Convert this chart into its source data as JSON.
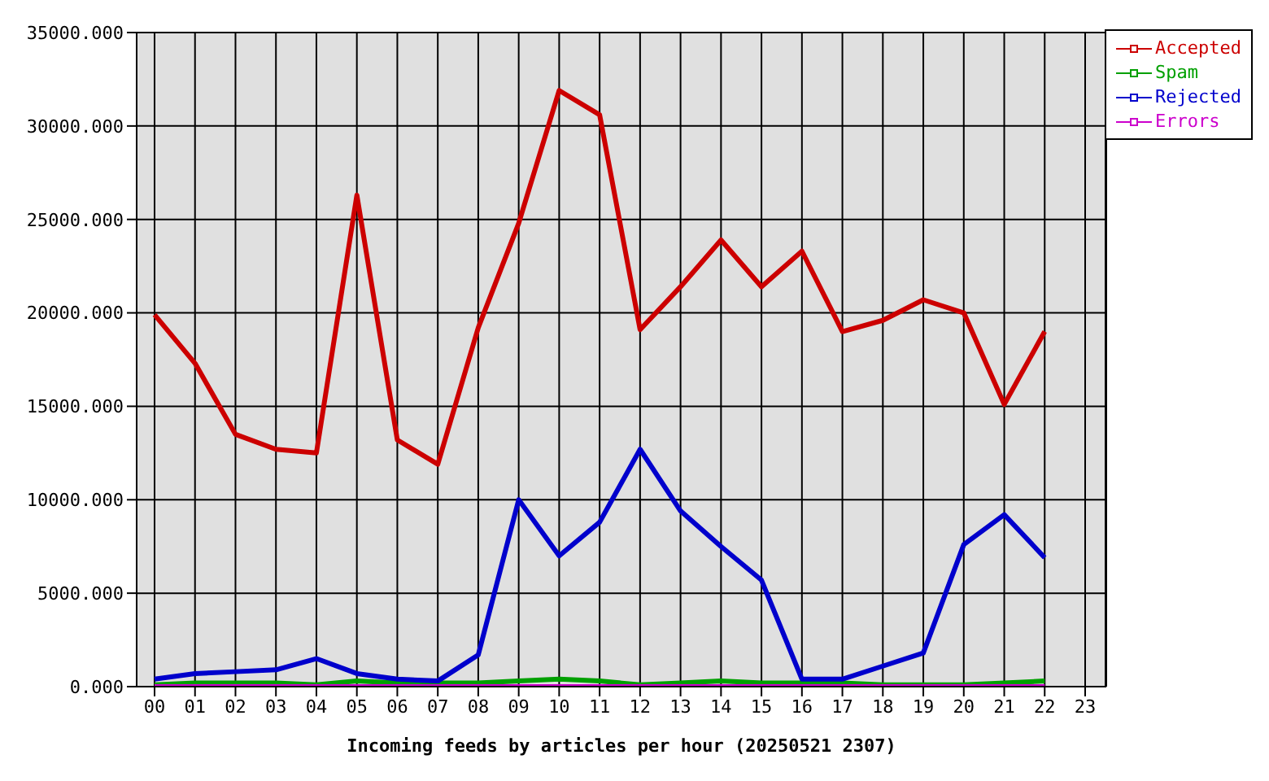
{
  "chart_data": {
    "type": "line",
    "xlabel": "Incoming feeds by articles per hour (20250521 2307)",
    "categories": [
      "00",
      "01",
      "02",
      "03",
      "04",
      "05",
      "06",
      "07",
      "08",
      "09",
      "10",
      "11",
      "12",
      "13",
      "14",
      "15",
      "16",
      "17",
      "18",
      "19",
      "20",
      "21",
      "22",
      "23"
    ],
    "series": [
      {
        "name": "Accepted",
        "color": "#cc0000",
        "values": [
          19900,
          17300,
          13500,
          12700,
          12500,
          26300,
          13200,
          11900,
          19200,
          24800,
          31900,
          30600,
          19100,
          21400,
          23900,
          21400,
          23300,
          19000,
          19600,
          20700,
          20000,
          15100,
          19000,
          null
        ]
      },
      {
        "name": "Spam",
        "color": "#00a000",
        "values": [
          100,
          200,
          200,
          200,
          100,
          300,
          200,
          200,
          200,
          300,
          400,
          300,
          100,
          200,
          300,
          200,
          200,
          200,
          100,
          100,
          100,
          200,
          300,
          null
        ]
      },
      {
        "name": "Rejected",
        "color": "#0000cc",
        "values": [
          400,
          700,
          800,
          900,
          1500,
          700,
          400,
          300,
          1700,
          10000,
          7000,
          8800,
          12700,
          9400,
          7500,
          5700,
          400,
          400,
          1100,
          1800,
          7600,
          9200,
          6900,
          null
        ]
      },
      {
        "name": "Errors",
        "color": "#cc00cc",
        "values": [
          0,
          0,
          0,
          0,
          0,
          0,
          0,
          0,
          0,
          0,
          0,
          0,
          0,
          0,
          0,
          0,
          0,
          0,
          0,
          0,
          0,
          0,
          0,
          null
        ]
      }
    ],
    "ylim": [
      0,
      35000
    ],
    "yticks": [
      {
        "value": 0,
        "label": "0.000"
      },
      {
        "value": 5000,
        "label": "5000.000"
      },
      {
        "value": 10000,
        "label": "10000.000"
      },
      {
        "value": 15000,
        "label": "15000.000"
      },
      {
        "value": 20000,
        "label": "20000.000"
      },
      {
        "value": 25000,
        "label": "25000.000"
      },
      {
        "value": 30000,
        "label": "30000.000"
      },
      {
        "value": 35000,
        "label": "35000.000"
      }
    ],
    "grid": true,
    "legend": "top right",
    "marker": "none",
    "line_style": "solid"
  }
}
